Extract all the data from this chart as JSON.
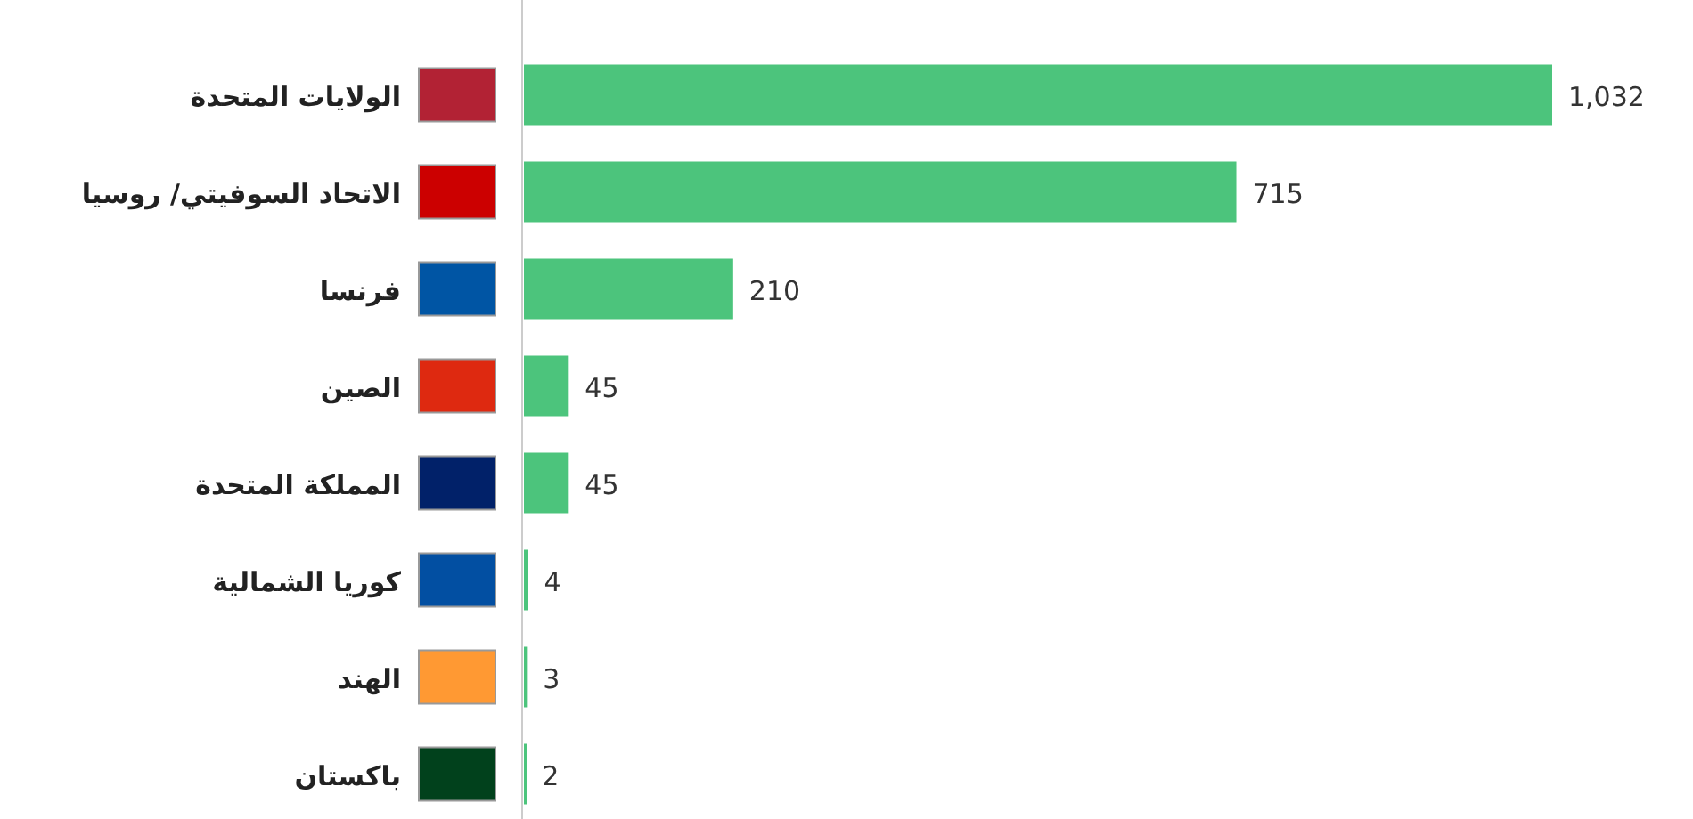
{
  "chart_data": {
    "type": "bar",
    "orientation": "horizontal",
    "categories": [
      "الولايات المتحدة",
      "الاتحاد السوفيتي/ روسيا",
      "فرنسا",
      "الصين",
      "المملكة المتحدة",
      "كوريا الشمالية",
      "الهند",
      "باكستان"
    ],
    "values": [
      1032,
      715,
      210,
      45,
      45,
      4,
      3,
      2
    ],
    "value_labels": [
      "1,032",
      "715",
      "210",
      "45",
      "45",
      "4",
      "3",
      "2"
    ],
    "color": "#4cc47c"
  }
}
